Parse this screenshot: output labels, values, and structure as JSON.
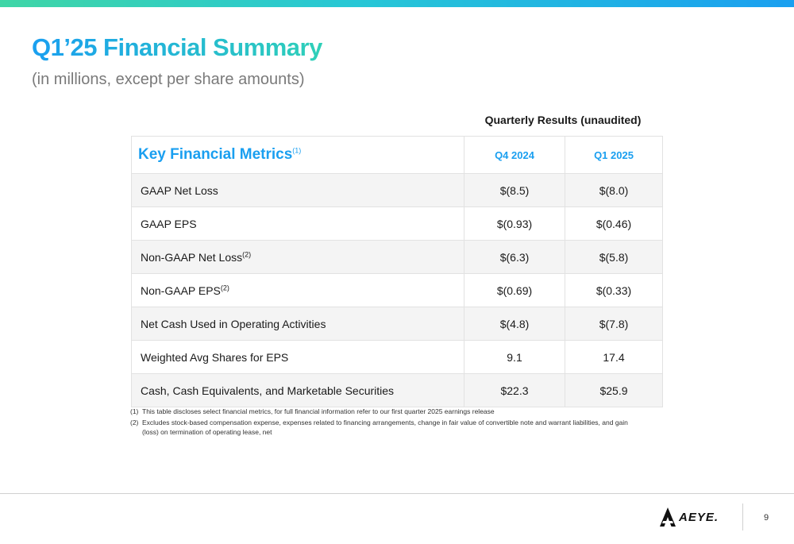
{
  "slide": {
    "title": "Q1’25 Financial Summary",
    "subtitle": "(in millions, except per share amounts)",
    "page_number": "9",
    "colors": {
      "accent_blue": "#1a9ff0",
      "accent_teal": "#2fd0b8",
      "row_shade": "#f4f4f4"
    }
  },
  "table": {
    "caption": "Quarterly Results (unaudited)",
    "header": {
      "metric": "Key Financial Metrics",
      "metric_note": "(1)",
      "periods": [
        "Q4 2024",
        "Q1 2025"
      ]
    },
    "rows": [
      {
        "label": "GAAP Net Loss",
        "note": "",
        "values": [
          "$(8.5)",
          "$(8.0)"
        ]
      },
      {
        "label": "GAAP EPS",
        "note": "",
        "values": [
          "$(0.93)",
          "$(0.46)"
        ]
      },
      {
        "label": "Non-GAAP Net Loss",
        "note": "(2)",
        "values": [
          "$(6.3)",
          "$(5.8)"
        ]
      },
      {
        "label": "Non-GAAP EPS",
        "note": "(2)",
        "values": [
          "$(0.69)",
          "$(0.33)"
        ]
      },
      {
        "label": "Net Cash Used in Operating Activities",
        "note": "",
        "values": [
          "$(4.8)",
          "$(7.8)"
        ]
      },
      {
        "label": "Weighted Avg Shares for EPS",
        "note": "",
        "values": [
          "9.1",
          "17.4"
        ]
      },
      {
        "label": "Cash, Cash Equivalents, and Marketable Securities",
        "note": "",
        "values": [
          "$22.3",
          "$25.9"
        ]
      }
    ]
  },
  "footnotes": [
    {
      "num": "(1)",
      "text": "This table discloses select financial metrics, for full financial information refer to our first quarter 2025 earnings release"
    },
    {
      "num": "(2)",
      "text": "Excludes stock-based compensation expense, expenses related to financing arrangements, change in fair value of convertible note and warrant liabilities, and gain (loss) on termination of operating lease, net"
    }
  ],
  "logo": {
    "text": "AEYE.",
    "icon": "aeye-logo-icon"
  }
}
